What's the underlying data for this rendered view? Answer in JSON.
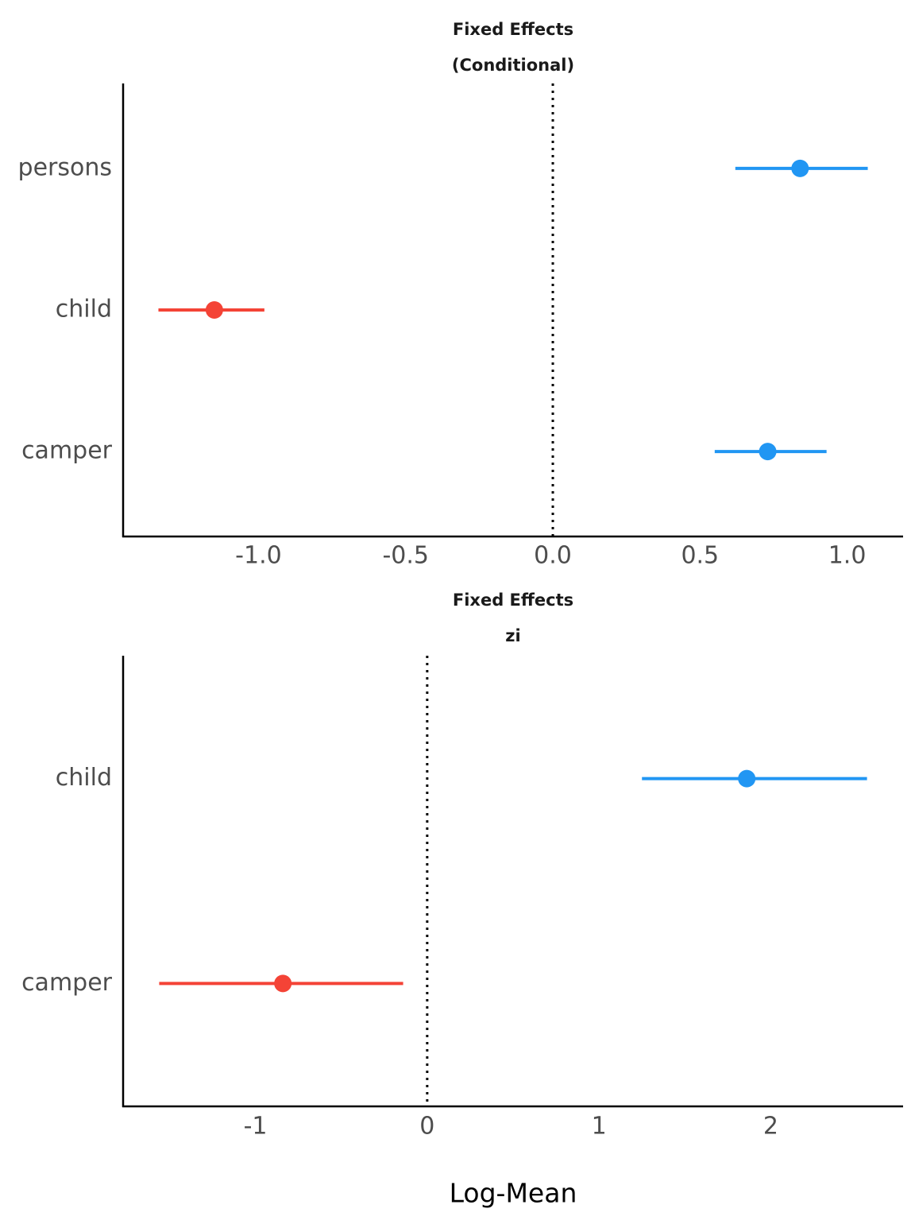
{
  "chart_data": [
    {
      "type": "forest",
      "title": "Fixed Effects",
      "subtitle": "(Conditional)",
      "categories": [
        "persons",
        "child",
        "camper"
      ],
      "values": [
        0.84,
        -1.15,
        0.73
      ],
      "ci_low": [
        0.62,
        -1.34,
        0.55
      ],
      "ci_high": [
        1.07,
        -0.98,
        0.93
      ],
      "colors": [
        "#2196f3",
        "#f44336",
        "#2196f3"
      ],
      "xlim": [
        -1.46,
        1.19
      ],
      "xticks": [
        {
          "value": -1,
          "label": "-1.0"
        },
        -0.5,
        {
          "value": 0,
          "label": "0.0"
        },
        0.5,
        {
          "value": 1,
          "label": "1.0"
        }
      ],
      "reference_line": 0
    },
    {
      "type": "forest",
      "title": "Fixed Effects",
      "subtitle": "zi",
      "categories": [
        "child",
        "camper"
      ],
      "values": [
        1.86,
        -0.84
      ],
      "ci_low": [
        1.25,
        -1.56
      ],
      "ci_high": [
        2.56,
        -0.14
      ],
      "colors": [
        "#2196f3",
        "#f44336"
      ],
      "xlim": [
        -1.77,
        2.77
      ],
      "xticks": [
        -1,
        0,
        1,
        2
      ],
      "reference_line": 0,
      "xlabel": "Log-Mean"
    }
  ]
}
